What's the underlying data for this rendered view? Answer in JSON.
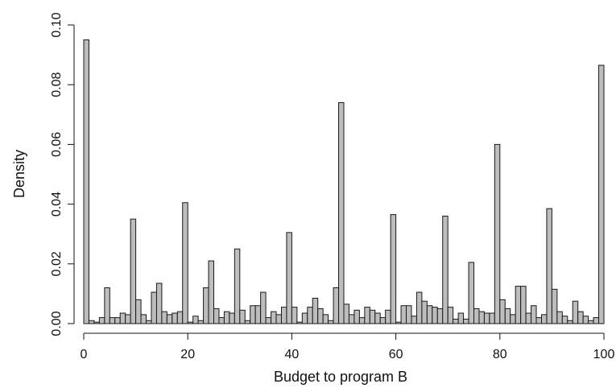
{
  "chart_data": {
    "type": "bar",
    "xlabel": "Budget to program B",
    "ylabel": "Density",
    "xlim": [
      0,
      100
    ],
    "ylim": [
      0,
      0.1
    ],
    "x_ticks": [
      0,
      20,
      40,
      60,
      80,
      100
    ],
    "y_ticks": [
      0.0,
      0.02,
      0.04,
      0.06,
      0.08,
      0.1
    ],
    "x_tick_labels": [
      "0",
      "20",
      "40",
      "60",
      "80",
      "100"
    ],
    "y_tick_labels": [
      "0.00",
      "0.02",
      "0.04",
      "0.06",
      "0.08",
      "0.10"
    ],
    "bin_width": 1,
    "bins_start": 0,
    "values": [
      0.095,
      0.001,
      0.0005,
      0.002,
      0.012,
      0.002,
      0.002,
      0.0035,
      0.003,
      0.035,
      0.008,
      0.003,
      0.001,
      0.0105,
      0.0135,
      0.004,
      0.003,
      0.0035,
      0.004,
      0.0405,
      0.0005,
      0.0025,
      0.001,
      0.012,
      0.021,
      0.005,
      0.002,
      0.004,
      0.0035,
      0.025,
      0.0045,
      0.001,
      0.006,
      0.006,
      0.0105,
      0.002,
      0.004,
      0.003,
      0.0055,
      0.0305,
      0.0055,
      0.0005,
      0.0035,
      0.0055,
      0.0085,
      0.005,
      0.003,
      0.001,
      0.012,
      0.074,
      0.0065,
      0.003,
      0.0045,
      0.002,
      0.0055,
      0.0045,
      0.0035,
      0.002,
      0.0045,
      0.0365,
      0.0005,
      0.006,
      0.006,
      0.0025,
      0.0105,
      0.0075,
      0.006,
      0.0055,
      0.005,
      0.036,
      0.0055,
      0.0015,
      0.0035,
      0.0015,
      0.0205,
      0.005,
      0.004,
      0.0035,
      0.0035,
      0.06,
      0.008,
      0.005,
      0.003,
      0.0125,
      0.0125,
      0.0035,
      0.006,
      0.002,
      0.003,
      0.0385,
      0.0115,
      0.004,
      0.0025,
      0.001,
      0.0075,
      0.004,
      0.0025,
      0.001,
      0.002,
      0.0865
    ],
    "grid": false,
    "legend": "none"
  }
}
